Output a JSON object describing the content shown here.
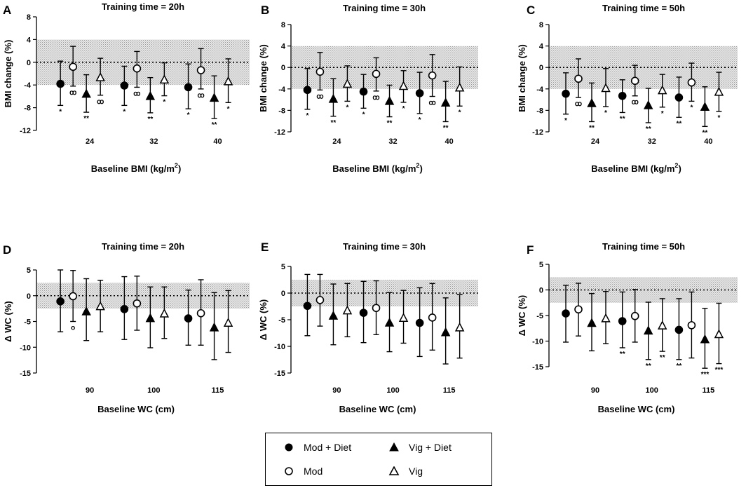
{
  "legend": {
    "mod_diet": "Mod + Diet",
    "vig_diet": "Vig +  Diet",
    "mod": "Mod",
    "vig": "Vig"
  },
  "series_styles": {
    "mod_diet": {
      "marker": "circle",
      "filled": true
    },
    "mod": {
      "marker": "circle",
      "filled": false
    },
    "vig_diet": {
      "marker": "triangle",
      "filled": true
    },
    "vig": {
      "marker": "triangle",
      "filled": false
    }
  },
  "colors": {
    "marker": "#000000",
    "band": "#d9d9d9"
  },
  "chart_data": [
    {
      "id": "A",
      "letter": "A",
      "type": "scatter",
      "title": "Training time = 20h",
      "xlabel": "Baseline BMI (kg/m",
      "xlabel_sup": "2",
      "xlabel_end": ")",
      "ylabel": "BMI change (%)",
      "yticks": [
        8,
        4,
        0,
        -4,
        -8,
        -12
      ],
      "ylim": [
        -12,
        8
      ],
      "ytick_labels": [
        "8",
        "4",
        "0",
        "-4",
        "-8",
        "-12"
      ],
      "band": [
        -4,
        4
      ],
      "groups": [
        "24",
        "32",
        "40"
      ],
      "series": [
        {
          "name": "Mod + Diet",
          "key": "mod_diet",
          "values": [
            -3.8,
            -4.1,
            -4.4
          ],
          "lower": [
            -7.6,
            -7.6,
            -8.2
          ],
          "upper": [
            0.2,
            -0.7,
            -0.3
          ],
          "sig": [
            "*",
            "*",
            "*"
          ]
        },
        {
          "name": "Mod",
          "key": "mod",
          "values": [
            -0.8,
            -1.1,
            -1.4
          ],
          "lower": [
            -4.2,
            -4.4,
            -4.7
          ],
          "upper": [
            2.8,
            1.9,
            2.4
          ],
          "sig": [
            "ꝏ",
            "ꝏ",
            "ꝏ"
          ]
        },
        {
          "name": "Vig + Diet",
          "key": "vig_diet",
          "values": [
            -5.6,
            -6.0,
            -6.3
          ],
          "lower": [
            -8.8,
            -8.9,
            -9.9
          ],
          "upper": [
            -2.2,
            -2.7,
            -2.4
          ],
          "sig": [
            "**",
            "**",
            "**"
          ]
        },
        {
          "name": "Vig",
          "key": "vig",
          "values": [
            -2.7,
            -3.1,
            -3.4
          ],
          "lower": [
            -5.8,
            -5.9,
            -7.1
          ],
          "upper": [
            0.7,
            -0.1,
            0.6
          ],
          "sig": [
            "ꝏ",
            "*",
            "*"
          ]
        }
      ]
    },
    {
      "id": "B",
      "letter": "B",
      "type": "scatter",
      "title": "Training time = 30h",
      "xlabel": "Baseline BMI (kg/m",
      "xlabel_sup": "2",
      "xlabel_end": ")",
      "ylabel": "BMI change (%)",
      "yticks": [
        8,
        4,
        0,
        -4,
        -8,
        -12
      ],
      "ylim": [
        -12,
        8
      ],
      "ytick_labels": [
        "8",
        "4",
        "0",
        "-4",
        "-8",
        "-12"
      ],
      "band": [
        -4,
        4
      ],
      "groups": [
        "24",
        "32",
        "40"
      ],
      "series": [
        {
          "name": "Mod + Diet",
          "key": "mod_diet",
          "values": [
            -4.2,
            -4.5,
            -4.8
          ],
          "lower": [
            -7.8,
            -7.6,
            -8.6
          ],
          "upper": [
            -0.2,
            -1.3,
            -0.9
          ],
          "sig": [
            "*",
            "*",
            "*"
          ]
        },
        {
          "name": "Mod",
          "key": "mod",
          "values": [
            -0.8,
            -1.2,
            -1.5
          ],
          "lower": [
            -4.2,
            -4.4,
            -5.4
          ],
          "upper": [
            2.8,
            1.8,
            2.4
          ],
          "sig": [
            "ꝏ",
            "ꝏ",
            "ꝏ"
          ]
        },
        {
          "name": "Vig + Diet",
          "key": "vig_diet",
          "values": [
            -5.9,
            -6.3,
            -6.6
          ],
          "lower": [
            -9.1,
            -9.2,
            -10.1
          ],
          "upper": [
            -2.1,
            -3.3,
            -2.6
          ],
          "sig": [
            "**",
            "**",
            "**"
          ]
        },
        {
          "name": "Vig",
          "key": "vig",
          "values": [
            -3.1,
            -3.5,
            -3.8
          ],
          "lower": [
            -6.3,
            -6.5,
            -7.2
          ],
          "upper": [
            0.3,
            -0.6,
            0.1
          ],
          "sig": [
            "*",
            "*",
            "*"
          ]
        }
      ]
    },
    {
      "id": "C",
      "letter": "C",
      "type": "scatter",
      "title": "Training time = 50h",
      "xlabel": "Baseline BMI (kg/m",
      "xlabel_sup": "2",
      "xlabel_end": ")",
      "ylabel": "BMI change (%)",
      "yticks": [
        8,
        4,
        0,
        -4,
        -8,
        -12
      ],
      "ylim": [
        -12,
        8
      ],
      "ytick_labels": [
        "8",
        "4",
        "0",
        "-4",
        "-8",
        "-12"
      ],
      "band": [
        -4,
        4
      ],
      "groups": [
        "24",
        "32",
        "40"
      ],
      "series": [
        {
          "name": "Mod + Diet",
          "key": "mod_diet",
          "values": [
            -4.9,
            -5.3,
            -5.6
          ],
          "lower": [
            -8.7,
            -8.4,
            -9.3
          ],
          "upper": [
            -1.0,
            -2.3,
            -1.8
          ],
          "sig": [
            "*",
            "**",
            "**"
          ]
        },
        {
          "name": "Mod",
          "key": "mod",
          "values": [
            -2.1,
            -2.5,
            -2.8
          ],
          "lower": [
            -5.6,
            -5.3,
            -6.3
          ],
          "upper": [
            1.6,
            0.4,
            0.8
          ],
          "sig": [
            "ꝏ",
            "ꝏ",
            "*"
          ]
        },
        {
          "name": "Vig + Diet",
          "key": "vig_diet",
          "values": [
            -6.7,
            -7.1,
            -7.4
          ],
          "lower": [
            -10.1,
            -10.3,
            -11.0
          ],
          "upper": [
            -2.9,
            -3.9,
            -3.6
          ],
          "sig": [
            "**",
            "**",
            "**"
          ]
        },
        {
          "name": "Vig",
          "key": "vig",
          "values": [
            -3.9,
            -4.3,
            -4.6
          ],
          "lower": [
            -7.3,
            -7.4,
            -8.2
          ],
          "upper": [
            -0.2,
            -1.3,
            -0.9
          ],
          "sig": [
            "*",
            "*",
            "*"
          ]
        }
      ]
    },
    {
      "id": "D",
      "letter": "D",
      "type": "scatter",
      "title": "Training time = 20h",
      "xlabel": "Baseline WC (cm)",
      "xlabel_sup": "",
      "xlabel_end": "",
      "ylabel": "Δ WC (%)",
      "yticks": [
        5,
        0,
        -5,
        -10,
        -15
      ],
      "ylim": [
        -15,
        5
      ],
      "ytick_labels": [
        "5",
        "0",
        "-5",
        "-10",
        "-15"
      ],
      "band": [
        -2.5,
        2.5
      ],
      "groups": [
        "90",
        "100",
        "115"
      ],
      "series": [
        {
          "name": "Mod + Diet",
          "key": "mod_diet",
          "values": [
            -1.1,
            -2.6,
            -4.4
          ],
          "lower": [
            -7.0,
            -8.5,
            -9.6
          ],
          "upper": [
            5.0,
            3.7,
            1.1
          ],
          "sig": [
            "",
            "",
            ""
          ]
        },
        {
          "name": "Mod",
          "key": "mod",
          "values": [
            -0.1,
            -1.5,
            -3.4
          ],
          "lower": [
            -5.0,
            -6.7,
            -9.6
          ],
          "upper": [
            4.9,
            3.8,
            3.1
          ],
          "sig": [
            "o",
            "",
            ""
          ]
        },
        {
          "name": "Vig + Diet",
          "key": "vig_diet",
          "values": [
            -3.1,
            -4.4,
            -6.2
          ],
          "lower": [
            -8.7,
            -10.1,
            -12.4
          ],
          "upper": [
            3.3,
            1.7,
            0.6
          ],
          "sig": [
            "",
            "",
            ""
          ]
        },
        {
          "name": "Vig",
          "key": "vig",
          "values": [
            -2.1,
            -3.5,
            -5.3
          ],
          "lower": [
            -7.0,
            -8.3,
            -11.0
          ],
          "upper": [
            3.0,
            1.7,
            1.0
          ],
          "sig": [
            "",
            "",
            ""
          ]
        }
      ]
    },
    {
      "id": "E",
      "letter": "E",
      "type": "scatter",
      "title": "Training time = 30h",
      "xlabel": "Baseline WC (cm)",
      "xlabel_sup": "",
      "xlabel_end": "",
      "ylabel": "Δ WC (%)",
      "yticks": [
        5,
        0,
        -5,
        -10,
        -15
      ],
      "ylim": [
        -15,
        5
      ],
      "ytick_labels": [
        "5",
        "0",
        "-5",
        "-10",
        "-15"
      ],
      "band": [
        -2.5,
        2.5
      ],
      "groups": [
        "90",
        "100",
        "115"
      ],
      "series": [
        {
          "name": "Mod + Diet",
          "key": "mod_diet",
          "values": [
            -2.4,
            -3.7,
            -5.6
          ],
          "lower": [
            -8.0,
            -9.3,
            -11.9
          ],
          "upper": [
            3.5,
            2.2,
            1.0
          ],
          "sig": [
            "",
            "",
            ""
          ]
        },
        {
          "name": "Mod",
          "key": "mod",
          "values": [
            -1.3,
            -2.8,
            -4.6
          ],
          "lower": [
            -6.2,
            -7.8,
            -10.7
          ],
          "upper": [
            3.5,
            2.3,
            1.8
          ],
          "sig": [
            "",
            "",
            ""
          ]
        },
        {
          "name": "Vig + Diet",
          "key": "vig_diet",
          "values": [
            -4.3,
            -5.6,
            -7.4
          ],
          "lower": [
            -9.7,
            -11.0,
            -13.3
          ],
          "upper": [
            1.7,
            0.1,
            -0.9
          ],
          "sig": [
            "",
            "",
            ""
          ]
        },
        {
          "name": "Vig",
          "key": "vig",
          "values": [
            -3.3,
            -4.7,
            -6.5
          ],
          "lower": [
            -8.2,
            -9.4,
            -12.2
          ],
          "upper": [
            1.8,
            0.5,
            -0.3
          ],
          "sig": [
            "",
            "",
            ""
          ]
        }
      ]
    },
    {
      "id": "F",
      "letter": "F",
      "type": "scatter",
      "title": "Training time = 50h",
      "xlabel": "Baseline WC (cm)",
      "xlabel_sup": "",
      "xlabel_end": "",
      "ylabel": "Δ WC (%)",
      "yticks": [
        5,
        0,
        -5,
        -10,
        -15
      ],
      "ylim": [
        -15,
        5
      ],
      "ytick_labels": [
        "5",
        "0",
        "-5",
        "-10",
        "-15"
      ],
      "band": [
        -2.5,
        2.5
      ],
      "groups": [
        "90",
        "100",
        "115"
      ],
      "series": [
        {
          "name": "Mod + Diet",
          "key": "mod_diet",
          "values": [
            -4.6,
            -6.1,
            -7.8
          ],
          "lower": [
            -10.2,
            -11.3,
            -13.6
          ],
          "upper": [
            0.9,
            -0.4,
            -1.7
          ],
          "sig": [
            "",
            "**",
            "**"
          ]
        },
        {
          "name": "Mod",
          "key": "mod",
          "values": [
            -3.8,
            -5.1,
            -6.9
          ],
          "lower": [
            -9.0,
            -10.2,
            -13.3
          ],
          "upper": [
            1.3,
            0.1,
            -0.4
          ],
          "sig": [
            "",
            "",
            ""
          ]
        },
        {
          "name": "Vig + Diet",
          "key": "vig_diet",
          "values": [
            -6.5,
            -8.0,
            -9.7
          ],
          "lower": [
            -11.9,
            -13.6,
            -15.3
          ],
          "upper": [
            -0.7,
            -2.4,
            -3.6
          ],
          "sig": [
            "",
            "**",
            "***"
          ]
        },
        {
          "name": "Vig",
          "key": "vig",
          "values": [
            -5.6,
            -7.0,
            -8.7
          ],
          "lower": [
            -10.5,
            -12.0,
            -14.4
          ],
          "upper": [
            -0.3,
            -1.7,
            -2.6
          ],
          "sig": [
            "",
            "**",
            "***"
          ]
        }
      ]
    }
  ]
}
